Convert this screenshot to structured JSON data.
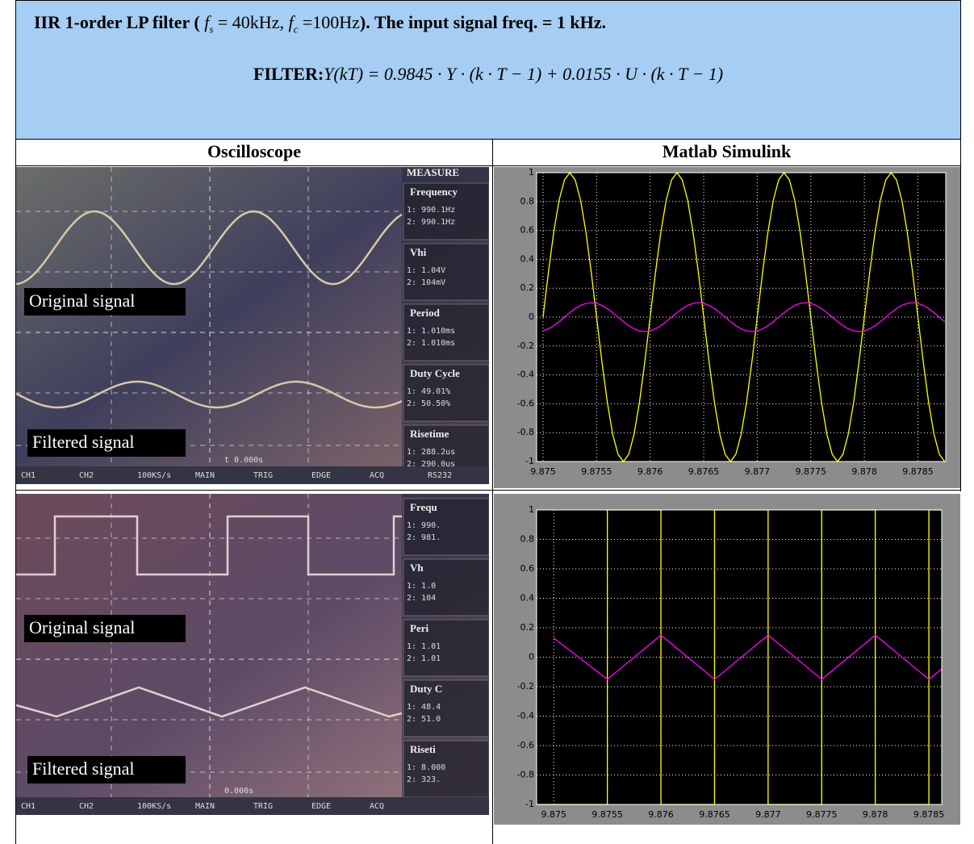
{
  "header": {
    "title": {
      "lead": "IIR 1-order LP filter (",
      "fs_symbol": "f",
      "fs_sub": "s",
      "fs_value": "= 40kHz",
      "separator": ",",
      "fc_symbol": "f",
      "fc_sub": "c",
      "fc_value": "=100Hz",
      "tail": "). The input signal freq. = 1 kHz."
    },
    "filter": {
      "label": "FILTER:",
      "equation": "Y(kT) = 0.9845 · Y · (k · T − 1) + 0.0155 · U · (k · T − 1)"
    }
  },
  "table": {
    "columns": [
      "Oscilloscope",
      "Matlab Simulink"
    ]
  },
  "scopes": [
    {
      "original": "Original signal",
      "filtered": "Filtered signal",
      "time": "t 0.000s",
      "measure": "MEASURE",
      "panel": [
        [
          "Frequency",
          "1: 990.1Hz",
          "2: 990.1Hz"
        ],
        [
          "Vhi",
          "1: 1.04V",
          "2: 104mV"
        ],
        [
          "Period",
          "1: 1.010ms",
          "2: 1.010ms"
        ],
        [
          "Duty Cycle",
          "1: 49.01%",
          "2: 50.50%"
        ],
        [
          "Risetime",
          "1: 288.2us",
          "2: 290.0us"
        ]
      ],
      "bar": [
        "CH1",
        "CH2",
        "100KS/s",
        "MAIN",
        "TRIG",
        "EDGE",
        "ACQ",
        "RS232"
      ]
    },
    {
      "original": "Original signal",
      "filtered": "Filtered signal",
      "time": "0.000s",
      "panel": [
        [
          "Frequ",
          "1: 990.",
          "2: 981."
        ],
        [
          "Vh",
          "1: 1.0",
          "2: 104"
        ],
        [
          "Peri",
          "1: 1.01",
          "2: 1.01"
        ],
        [
          "Duty C",
          "1: 48.4",
          "2: 51.0"
        ],
        [
          "Riseti",
          "1: 8.000",
          "2: 323."
        ]
      ],
      "bar": [
        "CH1",
        "CH2",
        "100KS/s",
        "MAIN",
        "TRIG",
        "EDGE",
        "ACQ"
      ]
    }
  ],
  "chart_data": [
    {
      "type": "line",
      "grid": true,
      "x": [
        9.875,
        9.87505,
        9.8751,
        9.87515,
        9.8752,
        9.87525,
        9.8753,
        9.87535,
        9.8754,
        9.87545,
        9.8755,
        9.87555,
        9.8756,
        9.87565,
        9.8757,
        9.87575,
        9.8758,
        9.87585,
        9.8759,
        9.87595,
        9.876,
        9.87605,
        9.8761,
        9.87615,
        9.8762,
        9.87625,
        9.8763,
        9.87635,
        9.8764,
        9.87645,
        9.8765,
        9.87655,
        9.8766,
        9.87665,
        9.8767,
        9.87675,
        9.8768,
        9.87685,
        9.8769,
        9.87695,
        9.877,
        9.87705,
        9.8771,
        9.87715,
        9.8772,
        9.87725,
        9.8773,
        9.87735,
        9.8774,
        9.87745,
        9.8775,
        9.87755,
        9.8776,
        9.87765,
        9.8777,
        9.87775,
        9.8778,
        9.87785,
        9.8779,
        9.87795,
        9.878,
        9.87805,
        9.8781,
        9.87815,
        9.8782,
        9.87825,
        9.8783,
        9.87835,
        9.8784,
        9.87845,
        9.8785,
        9.87855,
        9.8786,
        9.87865,
        9.8787,
        9.87875
      ],
      "series": [
        {
          "color": "#ffff00",
          "values": [
            0,
            0.31,
            0.59,
            0.81,
            0.95,
            1,
            0.95,
            0.81,
            0.59,
            0.31,
            0,
            -0.31,
            -0.59,
            -0.81,
            -0.95,
            -1,
            -0.95,
            -0.81,
            -0.59,
            -0.31,
            0,
            0.31,
            0.59,
            0.81,
            0.95,
            1,
            0.95,
            0.81,
            0.59,
            0.31,
            0,
            -0.31,
            -0.59,
            -0.81,
            -0.95,
            -1,
            -0.95,
            -0.81,
            -0.59,
            -0.31,
            0,
            0.31,
            0.59,
            0.81,
            0.95,
            1,
            0.95,
            0.81,
            0.59,
            0.31,
            0,
            -0.31,
            -0.59,
            -0.81,
            -0.95,
            -1,
            -0.95,
            -0.81,
            -0.59,
            -0.31,
            0,
            0.31,
            0.59,
            0.81,
            0.95,
            1,
            0.95,
            0.81,
            0.59,
            0.31,
            0,
            -0.31,
            -0.59,
            -0.81,
            -0.95,
            -1
          ]
        },
        {
          "color": "#ff00ff",
          "values": [
            -0.095,
            -0.081,
            -0.059,
            -0.031,
            0,
            0.031,
            0.059,
            0.081,
            0.095,
            0.1,
            0.095,
            0.081,
            0.059,
            0.031,
            0,
            -0.031,
            -0.059,
            -0.081,
            -0.095,
            -0.1,
            -0.095,
            -0.081,
            -0.059,
            -0.031,
            0,
            0.031,
            0.059,
            0.081,
            0.095,
            0.1,
            0.095,
            0.081,
            0.059,
            0.031,
            0,
            -0.031,
            -0.059,
            -0.081,
            -0.095,
            -0.1,
            -0.095,
            -0.081,
            -0.059,
            -0.031,
            0,
            0.031,
            0.059,
            0.081,
            0.095,
            0.1,
            0.095,
            0.081,
            0.059,
            0.031,
            0,
            -0.031,
            -0.059,
            -0.081,
            -0.095,
            -0.1,
            -0.095,
            -0.081,
            -0.059,
            -0.031,
            0,
            0.031,
            0.059,
            0.081,
            0.095,
            0.1,
            0.095,
            0.081,
            0.059,
            0.031,
            0,
            -0.031
          ]
        }
      ],
      "xlim": [
        9.87494,
        9.87876
      ],
      "ylim": [
        -1,
        1
      ],
      "xticks": [
        9.875,
        9.8755,
        9.876,
        9.8765,
        9.877,
        9.8775,
        9.878,
        9.8785
      ],
      "yticks": [
        -1,
        -0.8,
        -0.6,
        -0.4,
        -0.2,
        0,
        0.2,
        0.4,
        0.6,
        0.8,
        1
      ]
    },
    {
      "type": "line",
      "grid": true,
      "series": [
        {
          "color": "#ffff00",
          "x": [
            9.87484,
            9.8755,
            9.8755,
            9.876,
            9.876,
            9.8765,
            9.8765,
            9.877,
            9.877,
            9.8775,
            9.8775,
            9.878,
            9.878,
            9.8785,
            9.8785,
            9.87862
          ],
          "values": [
            -1,
            -1,
            1,
            1,
            -1,
            -1,
            1,
            1,
            -1,
            -1,
            1,
            1,
            -1,
            -1,
            1,
            1
          ]
        },
        {
          "color": "#ff00ff",
          "x": [
            9.875,
            9.8755,
            9.876,
            9.8765,
            9.877,
            9.8775,
            9.878,
            9.8785,
            9.87862
          ],
          "values": [
            0.13,
            -0.15,
            0.15,
            -0.15,
            0.15,
            -0.15,
            0.15,
            -0.15,
            -0.08
          ]
        }
      ],
      "xlim": [
        9.87484,
        9.87862
      ],
      "ylim": [
        -1,
        1
      ],
      "xticks": [
        9.875,
        9.8755,
        9.876,
        9.8765,
        9.877,
        9.8775,
        9.878,
        9.8785
      ],
      "yticks": [
        -1,
        -0.8,
        -0.6,
        -0.4,
        -0.2,
        0,
        0.2,
        0.4,
        0.6,
        0.8,
        1
      ]
    }
  ]
}
